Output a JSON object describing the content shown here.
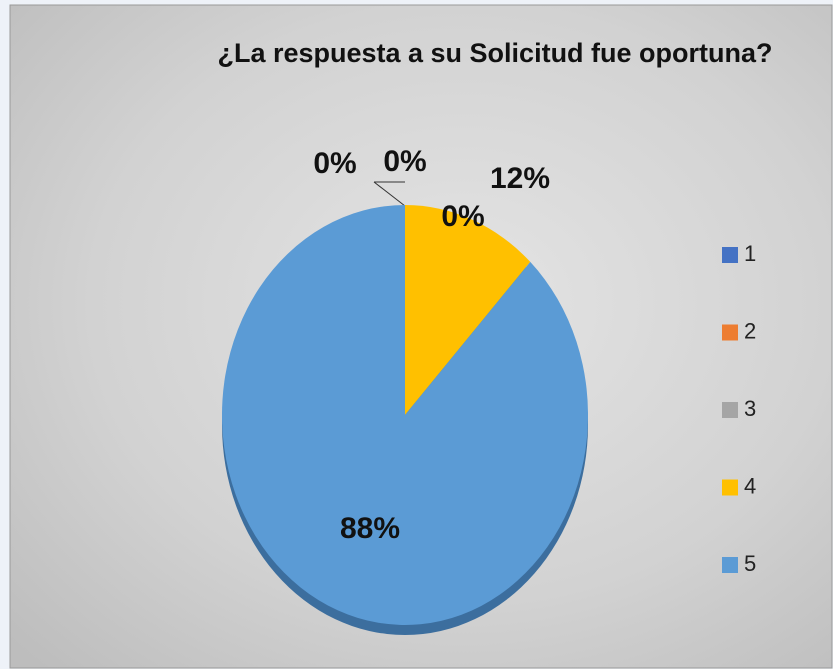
{
  "chart_data": {
    "type": "pie",
    "title": "¿La respuesta a su Solicitud fue  oportuna?",
    "categories": [
      "1",
      "2",
      "3",
      "4",
      "5"
    ],
    "values": [
      0,
      0,
      0,
      12,
      88
    ],
    "value_labels": [
      "0%",
      "0%",
      "0%",
      "12%",
      "88%"
    ],
    "colors": [
      "#4472c4",
      "#ed7d31",
      "#a5a5a5",
      "#ffc000",
      "#5b9bd5"
    ],
    "legend": "right"
  }
}
